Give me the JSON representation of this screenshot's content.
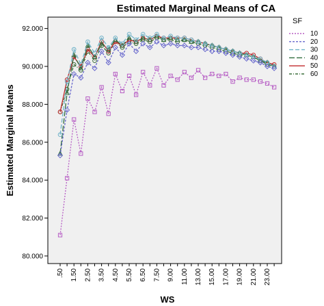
{
  "chart_data": {
    "type": "line",
    "title": "Estimated Marginal Means of CA",
    "xlabel": "WS",
    "ylabel": "Estimated Marginal Means",
    "ylim": [
      79.6,
      92.6
    ],
    "yticks": [
      80,
      82,
      84,
      86,
      88,
      90,
      92
    ],
    "ytick_labels": [
      "80.000",
      "82.000",
      "84.000",
      "86.000",
      "88.000",
      "90.000",
      "92.000"
    ],
    "x_tick_labels": [
      ".50",
      "1.50",
      "2.50",
      "3.50",
      "4.50",
      "5.50",
      "6.50",
      "7.50",
      "9.00",
      "11.00",
      "13.00",
      "15.00",
      "17.00",
      "19.00",
      "21.00",
      "23.00"
    ],
    "x_tick_positions": [
      1,
      3,
      5,
      7,
      9,
      11,
      13,
      15,
      17,
      19,
      21,
      23,
      25,
      27,
      29,
      31
    ],
    "grid": false,
    "legend": {
      "title": "SF",
      "placement": "top-right"
    },
    "series": [
      {
        "name": "10",
        "color": "#b65cc4",
        "dash": "2,2",
        "marker": "square",
        "values": [
          81.1,
          84.1,
          87.2,
          85.4,
          88.3,
          87.6,
          88.9,
          87.5,
          89.6,
          88.7,
          89.5,
          88.5,
          89.7,
          89.0,
          89.9,
          89.0,
          89.5,
          89.3,
          89.7,
          89.4,
          89.8,
          89.4,
          89.6,
          89.5,
          89.6,
          89.2,
          89.4,
          89.3,
          89.3,
          89.2,
          89.1,
          88.9
        ]
      },
      {
        "name": "20",
        "color": "#6666cc",
        "dash": "3,2",
        "marker": "diamond",
        "values": [
          85.3,
          87.7,
          89.6,
          89.4,
          90.2,
          89.9,
          90.8,
          90.2,
          91.0,
          90.6,
          91.2,
          90.8,
          91.2,
          91.0,
          91.3,
          91.1,
          91.2,
          91.1,
          91.1,
          91.0,
          91.0,
          90.9,
          90.8,
          90.8,
          90.7,
          90.6,
          90.5,
          90.4,
          90.3,
          90.2,
          90.0,
          89.9
        ]
      },
      {
        "name": "30",
        "color": "#6fb2c8",
        "dash": "6,3",
        "marker": "circle",
        "values": [
          86.4,
          89.2,
          90.9,
          90.1,
          91.3,
          90.7,
          91.5,
          91.0,
          91.5,
          91.2,
          91.7,
          91.4,
          91.7,
          91.5,
          91.7,
          91.5,
          91.6,
          91.5,
          91.5,
          91.4,
          91.3,
          91.2,
          91.1,
          91.0,
          90.9,
          90.8,
          90.7,
          90.6,
          90.5,
          90.4,
          90.2,
          90.0
        ]
      },
      {
        "name": "40",
        "color": "#2f6b3c",
        "dash": "8,3",
        "marker": "triangle",
        "values": [
          85.4,
          88.6,
          90.6,
          89.9,
          91.1,
          90.5,
          91.2,
          90.9,
          91.4,
          91.1,
          91.5,
          91.3,
          91.5,
          91.4,
          91.6,
          91.4,
          91.5,
          91.4,
          91.4,
          91.3,
          91.3,
          91.2,
          91.1,
          91.0,
          90.9,
          90.8,
          90.7,
          90.6,
          90.5,
          90.3,
          90.2,
          90.0
        ]
      },
      {
        "name": "50",
        "color": "#c0282b",
        "dash": "",
        "marker": "circle",
        "values": [
          87.6,
          89.3,
          90.5,
          90.0,
          90.9,
          90.5,
          91.3,
          90.8,
          91.3,
          91.1,
          91.4,
          91.3,
          91.5,
          91.4,
          91.6,
          91.5,
          91.5,
          91.5,
          91.5,
          91.4,
          91.3,
          91.2,
          91.1,
          91.0,
          90.9,
          90.8,
          90.7,
          90.7,
          90.6,
          90.4,
          90.2,
          90.1
        ]
      },
      {
        "name": "60",
        "color": "#3c6e3c",
        "dash": "4,2,1,2",
        "marker": "circle",
        "values": [
          87.6,
          88.8,
          90.1,
          89.8,
          90.8,
          90.3,
          91.1,
          90.7,
          91.3,
          91.0,
          91.3,
          91.2,
          91.4,
          91.3,
          91.5,
          91.4,
          91.4,
          91.3,
          91.4,
          91.3,
          91.2,
          91.1,
          91.0,
          90.9,
          90.8,
          90.7,
          90.6,
          90.6,
          90.5,
          90.3,
          90.1,
          90.0
        ]
      }
    ]
  }
}
